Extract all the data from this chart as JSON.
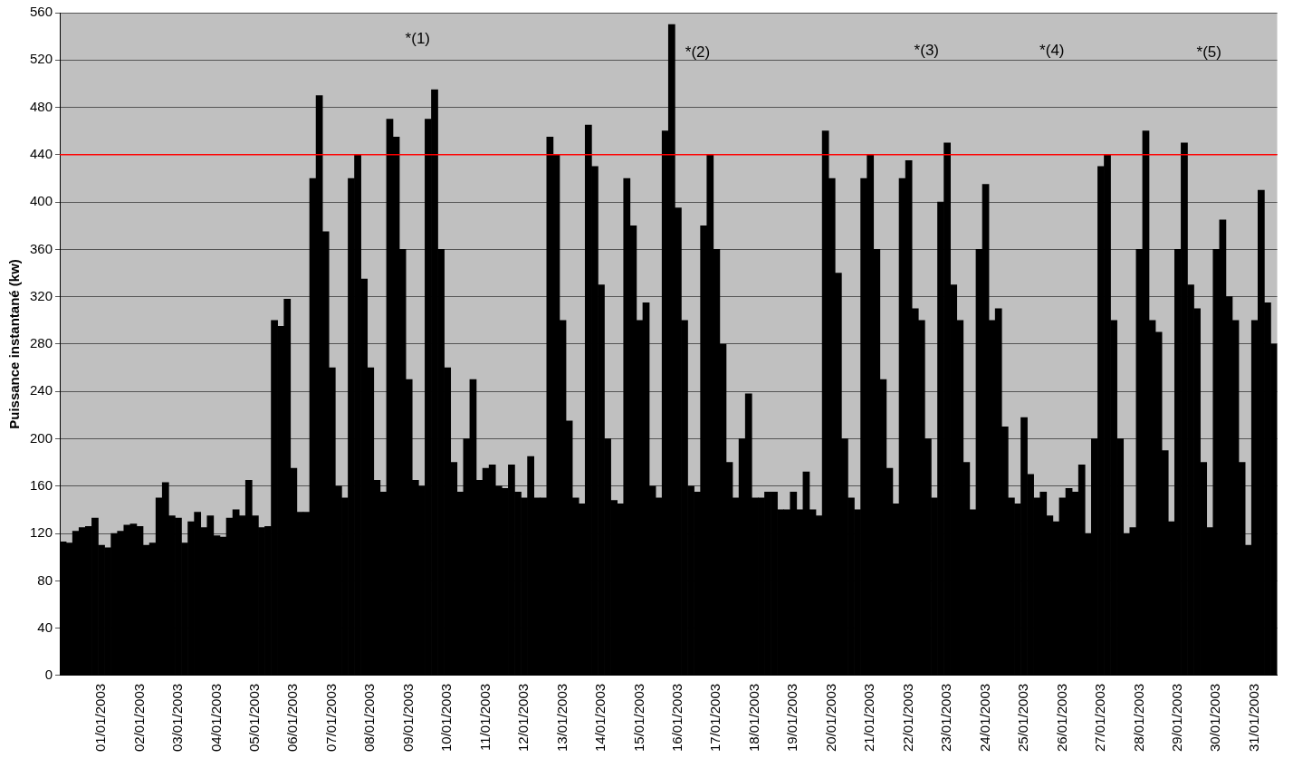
{
  "chart_data": {
    "type": "bar",
    "ylabel": "Puissance instantané (kw)",
    "categories": [
      null,
      null,
      null,
      null,
      null,
      null,
      "01/01/2003",
      null,
      null,
      null,
      null,
      null,
      "02/01/2003",
      null,
      null,
      null,
      null,
      null,
      "03/01/2003",
      null,
      null,
      null,
      null,
      null,
      "04/01/2003",
      null,
      null,
      null,
      null,
      null,
      "05/01/2003",
      null,
      null,
      null,
      null,
      null,
      "06/01/2003",
      null,
      null,
      null,
      null,
      null,
      "07/01/2003",
      null,
      null,
      null,
      null,
      null,
      "08/01/2003",
      null,
      null,
      null,
      null,
      null,
      "09/01/2003",
      null,
      null,
      null,
      null,
      null,
      "10/01/2003",
      null,
      null,
      null,
      null,
      null,
      "11/01/2003",
      null,
      null,
      null,
      null,
      null,
      "12/01/2003",
      null,
      null,
      null,
      null,
      null,
      "13/01/2003",
      null,
      null,
      null,
      null,
      null,
      "14/01/2003",
      null,
      null,
      null,
      null,
      null,
      "15/01/2003",
      null,
      null,
      null,
      null,
      null,
      "16/01/2003",
      null,
      null,
      null,
      null,
      null,
      "17/01/2003",
      null,
      null,
      null,
      null,
      null,
      "18/01/2003",
      null,
      null,
      null,
      null,
      null,
      "19/01/2003",
      null,
      null,
      null,
      null,
      null,
      "20/01/2003",
      null,
      null,
      null,
      null,
      null,
      "21/01/2003",
      null,
      null,
      null,
      null,
      null,
      "22/01/2003",
      null,
      null,
      null,
      null,
      null,
      "23/01/2003",
      null,
      null,
      null,
      null,
      null,
      "24/01/2003",
      null,
      null,
      null,
      null,
      null,
      "25/01/2003",
      null,
      null,
      null,
      null,
      null,
      "26/01/2003",
      null,
      null,
      null,
      null,
      null,
      "27/01/2003",
      null,
      null,
      null,
      null,
      null,
      "28/01/2003",
      null,
      null,
      null,
      null,
      null,
      "29/01/2003",
      null,
      null,
      null,
      null,
      null,
      "30/01/2003",
      null,
      null,
      null,
      null,
      null,
      "31/01/2003",
      null,
      null,
      null
    ],
    "values": [
      113,
      112,
      122,
      125,
      126,
      133,
      110,
      108,
      120,
      122,
      127,
      128,
      126,
      110,
      112,
      150,
      163,
      135,
      133,
      112,
      130,
      138,
      125,
      135,
      118,
      117,
      133,
      140,
      135,
      165,
      135,
      125,
      126,
      300,
      295,
      318,
      175,
      138,
      138,
      420,
      490,
      375,
      260,
      160,
      150,
      420,
      440,
      335,
      260,
      165,
      155,
      470,
      455,
      360,
      250,
      165,
      160,
      470,
      495,
      360,
      260,
      180,
      155,
      200,
      250,
      165,
      175,
      178,
      160,
      158,
      178,
      155,
      150,
      185,
      150,
      150,
      455,
      440,
      300,
      215,
      150,
      145,
      465,
      430,
      330,
      200,
      148,
      145,
      420,
      380,
      300,
      315,
      160,
      150,
      460,
      550,
      395,
      300,
      160,
      155,
      380,
      440,
      360,
      280,
      180,
      150,
      200,
      238,
      150,
      150,
      155,
      155,
      140,
      140,
      155,
      140,
      172,
      140,
      135,
      460,
      420,
      340,
      200,
      150,
      140,
      420,
      440,
      360,
      250,
      175,
      145,
      420,
      435,
      310,
      300,
      200,
      150,
      400,
      450,
      330,
      300,
      180,
      140,
      360,
      415,
      300,
      310,
      210,
      150,
      145,
      218,
      170,
      150,
      155,
      135,
      130,
      150,
      158,
      155,
      178,
      120,
      200,
      430,
      440,
      300,
      200,
      120,
      125,
      360,
      460,
      300,
      290,
      190,
      130,
      360,
      450,
      330,
      310,
      180,
      125,
      360,
      385,
      320,
      300,
      180,
      110,
      300,
      410,
      315,
      280
    ],
    "color": "#000000",
    "ylim": [
      0,
      560
    ],
    "yticks": [
      0,
      40,
      80,
      120,
      160,
      200,
      240,
      280,
      320,
      360,
      400,
      440,
      480,
      520,
      560
    ],
    "grid": "y",
    "ref_lines": [
      {
        "axis": "y",
        "value": 440,
        "color": "#ff0000"
      }
    ],
    "annotations": [
      "*(1)",
      "*(2)",
      "*(3)",
      "*(4)",
      "*(5)"
    ]
  }
}
